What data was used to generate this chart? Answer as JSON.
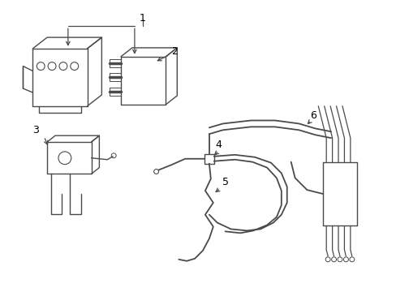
{
  "bg_color": "#ffffff",
  "line_color": "#4a4a4a",
  "lw": 1.0,
  "fig_width": 4.89,
  "fig_height": 3.6,
  "dpi": 100
}
